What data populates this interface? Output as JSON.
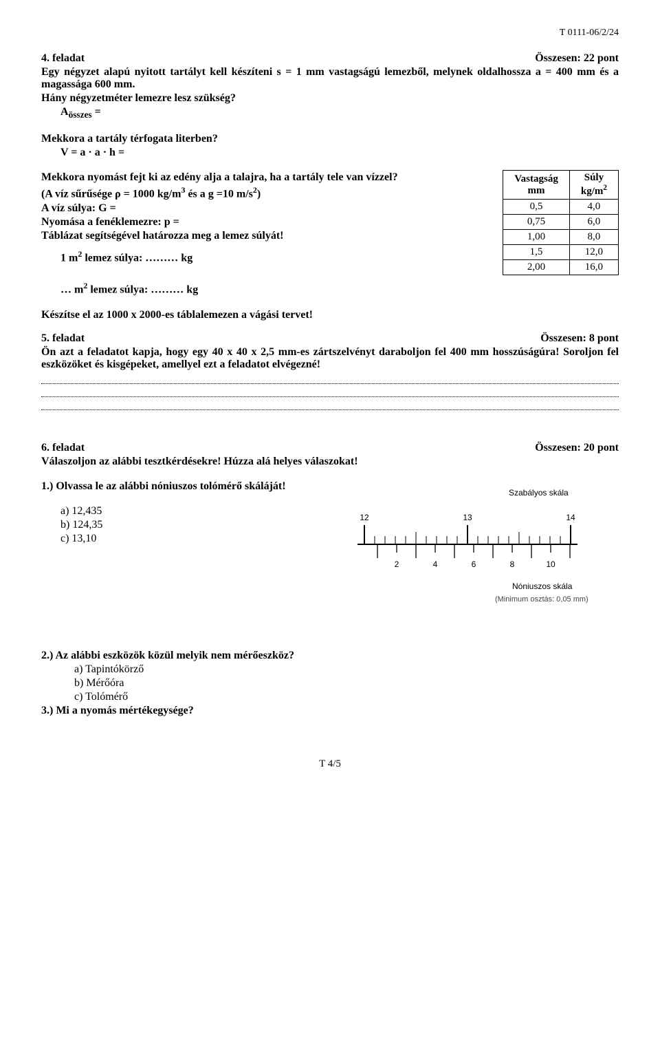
{
  "header_code": "T 0111-06/2/24",
  "task4": {
    "title": "4. feladat",
    "points": "Összesen: 22 pont",
    "line1": "Egy négyzet alapú nyitott tartályt kell készíteni s = 1 mm vastagságú lemezből, melynek oldalhossza a = 400 mm és a magassága 600 mm.",
    "line2": "Hány négyzetméter lemezre lesz szükség?",
    "line3_prefix": "A",
    "line3_sub": "összes",
    "line3_rest": " =",
    "line4": "Mekkora a tartály térfogata literben?",
    "line5_prefix": "V = a · a · h =",
    "line6": "Mekkora nyomást fejt ki az edény alja a talajra, ha a tartály tele van vízzel?",
    "line7_pre": "(A víz sűrűsége ρ = 1000 kg/m",
    "line7_sup1": "3",
    "line7_mid": " és a g =10 m/s",
    "line7_sup2": "2",
    "line7_post": ")",
    "line8": "A víz súlya: G =",
    "line9": "Nyomása a fenéklemezre: p =",
    "line10": "Táblázat segítségével határozza meg a lemez súlyát!",
    "line11_pre": "1 m",
    "line11_sup": "2",
    "line11_post": " lemez súlya: ……… kg",
    "line12_pre": "… m",
    "line12_sup": "2",
    "line12_post": " lemez súlya: ……… kg",
    "line13": "Készítse el az 1000 x 2000-es táblalemezen a vágási tervet!",
    "table": {
      "head1a": "Vastagság",
      "head1b": "mm",
      "head2a": "Súly",
      "head2b_pre": "kg/m",
      "head2b_sup": "2",
      "rows": [
        {
          "v": "0,5",
          "s": "4,0"
        },
        {
          "v": "0,75",
          "s": "6,0"
        },
        {
          "v": "1,00",
          "s": "8,0"
        },
        {
          "v": "1,5",
          "s": "12,0"
        },
        {
          "v": "2,00",
          "s": "16,0"
        }
      ]
    }
  },
  "task5": {
    "title": "5. feladat",
    "points": "Összesen: 8 pont",
    "body": "Ön azt a feladatot kapja, hogy egy 40 x 40 x 2,5 mm-es zártszelvényt daraboljon fel 400 mm hosszúságúra! Soroljon fel eszközöket és kisgépeket, amellyel ezt a feladatot elvégezné!"
  },
  "task6": {
    "title": "6. feladat",
    "points": "Összesen: 20 pont",
    "intro": "Válaszoljon az alábbi tesztkérdésekre! Húzza alá helyes válaszokat!",
    "q1": {
      "text": "1.) Olvassa le az alábbi nóniuszos tolómérő skáláját!",
      "a": "a)  12,435",
      "b": "b)  124,35",
      "c": "c)  13,10",
      "caption_top": "Szabályos skála",
      "main_ticks": [
        "12",
        "13",
        "14"
      ],
      "sub_ticks": [
        "2",
        "4",
        "6",
        "8",
        "10"
      ],
      "caption_bottom": "Nóniuszos skála",
      "caption_min": "(Minimum osztás: 0,05 mm)"
    },
    "q2": {
      "text": "2.) Az alábbi eszközök közül melyik nem mérőeszköz?",
      "a": "a)  Tapintókörző",
      "b": "b)  Mérőóra",
      "c": "c)  Tolómérő"
    },
    "q3": {
      "text": "3.) Mi a nyomás mértékegysége?"
    }
  },
  "footer": "T 4/5"
}
